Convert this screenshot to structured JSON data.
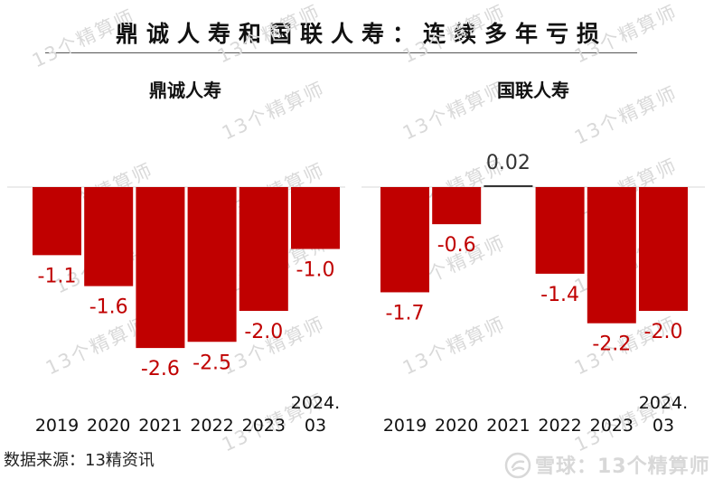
{
  "title": "鼎诚人寿和国联人寿：连续多年亏损",
  "source_note": "数据来源：13精资讯",
  "watermark": {
    "text": "13个精算师",
    "brand_text": "雪球：13个精算师",
    "color": "#d9d9d9"
  },
  "colors": {
    "bar": "#c00000",
    "label": "#c00000",
    "zero_line": "#d9d9d9"
  },
  "chart_data": [
    {
      "type": "bar",
      "title": "鼎诚人寿",
      "categories": [
        "2019",
        "2020",
        "2021",
        "2022",
        "2023",
        "2024.\n03"
      ],
      "values": [
        -1.1,
        -1.6,
        -2.6,
        -2.5,
        -2.0,
        -1.0
      ],
      "value_labels": [
        "-1.1",
        "-1.6",
        "-2.6",
        "-2.5",
        "-2.0",
        "-1.0"
      ],
      "ylim": [
        -2.6,
        0
      ],
      "legend": "none",
      "grid": false
    },
    {
      "type": "bar",
      "title": "国联人寿",
      "categories": [
        "2019",
        "2020",
        "2021",
        "2022",
        "2023",
        "2024.\n03"
      ],
      "values": [
        -1.7,
        -0.6,
        0.02,
        -1.4,
        -2.2,
        -2.0
      ],
      "value_labels": [
        "-1.7",
        "-0.6",
        "0.02",
        "-1.4",
        "-2.2",
        "-2.0"
      ],
      "ylim": [
        -2.2,
        0
      ],
      "legend": "none",
      "grid": false
    }
  ]
}
